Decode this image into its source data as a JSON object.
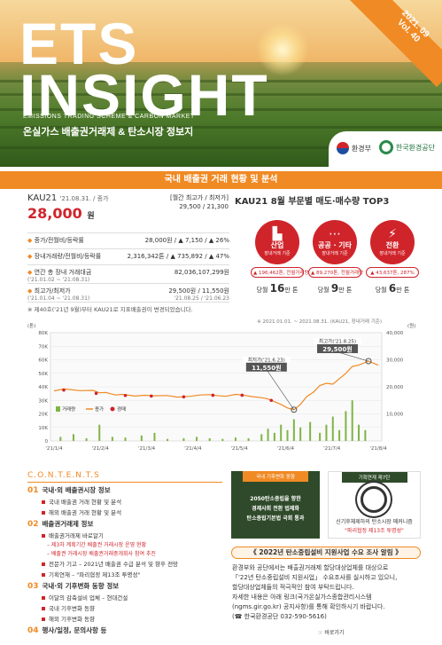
{
  "cover": {
    "title_line1": "ETS",
    "title_line2": "INSIGHT",
    "subtitle_en": "EMISSIONS TRADING SCHEME & CARBON MARKET",
    "subtitle_kr": "온실가스 배출권거래제 & 탄소시장 정보지",
    "issue_date": "2021. 09",
    "issue_vol": "Vol. 40",
    "logo_ministry": "환경부",
    "logo_keco": "한국환경공단"
  },
  "section_title": "국내 배출권 거래 현황 및 분석",
  "kau": {
    "name": "KAU21",
    "date_note": "'21.08.31. / 종가",
    "price": "28,000",
    "price_unit": "원",
    "hilo_label": "[월간 최고가 / 최저가]",
    "hilo_value": "29,500 / 21,300",
    "rows": [
      {
        "label": "종가/전월비/등락률",
        "sub": "",
        "value": "28,000원 / ▲ 7,150 / ▲ 26%",
        "value_sub": ""
      },
      {
        "label": "장내거래량/전월비/등락률",
        "sub": "",
        "value": "2,316,342톤 / ▲ 735,892 / ▲ 47%",
        "value_sub": ""
      },
      {
        "label": "연간 총 장내 거래대금",
        "sub": "('21.01.02 ~ '21.08.31)",
        "value": "82,036,107,299원",
        "value_sub": ""
      },
      {
        "label": "최고가/최저가",
        "sub": "('21.01.04 ~ '21.08.31)",
        "value": "29,500원 / 11,550원",
        "value_sub": "'21.08.25 / '21.06.23"
      }
    ],
    "note": "※ 제40호('21년 9월)부터 KAU21로 지표배출권이 변경되었습니다."
  },
  "top3": {
    "title": "KAU21 8월 부문별 매도·매수량 TOP3",
    "items": [
      {
        "name": "산업",
        "desc": "장내거래 기준",
        "delta": "▲ 196,462톤, 전월거래량",
        "vol_label": "당월",
        "vol": "16",
        "vol_unit": "만 톤",
        "icon": "factory-icon"
      },
      {
        "name": "공공 · 기타",
        "desc": "장내거래 기준",
        "delta": "▲ 89,270톤, 전월거래량",
        "vol_label": "당월",
        "vol": "9",
        "vol_unit": "만 톤",
        "icon": "dots-icon"
      },
      {
        "name": "전환",
        "desc": "장내거래 기준",
        "delta": "▲ 43,637톤, 287%",
        "vol_label": "당월",
        "vol": "6",
        "vol_unit": "만 톤",
        "icon": "bolt-icon"
      }
    ]
  },
  "chart_data": {
    "type": "line",
    "period_note": "※ 2021.01.01. ~ 2021.08.31. (KAU21, 장내거래 기준)",
    "left_unit": "(톤)",
    "right_unit": "(원)",
    "x_ticks": [
      "'21/1/4",
      "'21/2/4",
      "'21/3/4",
      "'21/4/4",
      "'21/5/4",
      "'21/6/4",
      "'21/7/4",
      "'21/8/4"
    ],
    "left_ticks": [
      "80K",
      "70K",
      "60K",
      "50K",
      "40K",
      "30K",
      "20K",
      "10K",
      "0"
    ],
    "right_ticks": [
      "40,000",
      "30,000",
      "20,000",
      "10,000"
    ],
    "ylim_volume": [
      0,
      80000
    ],
    "ylim_price": [
      0,
      40000
    ],
    "legend": [
      "거래량",
      "종가",
      "경매"
    ],
    "colors": {
      "volume": "#7fb446",
      "close": "#f08a24",
      "auction": "#d0242b"
    },
    "annotations": [
      {
        "label": "최저가('21.6.23)",
        "value": "11,550원",
        "date": 0.74,
        "price": 11550
      },
      {
        "label": "최고가('21.8.25)",
        "value": "29,500원",
        "date": 0.97,
        "price": 29500
      }
    ],
    "close_series": [
      [
        0.0,
        18500
      ],
      [
        0.03,
        19200
      ],
      [
        0.05,
        19000
      ],
      [
        0.08,
        18600
      ],
      [
        0.12,
        18700
      ],
      [
        0.14,
        17800
      ],
      [
        0.16,
        17900
      ],
      [
        0.19,
        17000
      ],
      [
        0.21,
        17200
      ],
      [
        0.25,
        16600
      ],
      [
        0.28,
        16900
      ],
      [
        0.31,
        16700
      ],
      [
        0.35,
        16800
      ],
      [
        0.38,
        16200
      ],
      [
        0.42,
        16500
      ],
      [
        0.45,
        17000
      ],
      [
        0.48,
        17100
      ],
      [
        0.5,
        16800
      ],
      [
        0.53,
        16500
      ],
      [
        0.56,
        17200
      ],
      [
        0.58,
        17000
      ],
      [
        0.61,
        16400
      ],
      [
        0.64,
        16000
      ],
      [
        0.66,
        15500
      ],
      [
        0.68,
        14500
      ],
      [
        0.7,
        13500
      ],
      [
        0.72,
        12200
      ],
      [
        0.74,
        11550
      ],
      [
        0.76,
        13500
      ],
      [
        0.78,
        16500
      ],
      [
        0.8,
        18000
      ],
      [
        0.82,
        20500
      ],
      [
        0.84,
        21300
      ],
      [
        0.86,
        21000
      ],
      [
        0.88,
        23000
      ],
      [
        0.9,
        25000
      ],
      [
        0.92,
        27500
      ],
      [
        0.94,
        28000
      ],
      [
        0.96,
        29000
      ],
      [
        0.97,
        29500
      ],
      [
        1.0,
        28000
      ]
    ],
    "auction_points": [
      [
        0.03,
        18800
      ],
      [
        0.13,
        17600
      ],
      [
        0.22,
        16800
      ],
      [
        0.3,
        16600
      ],
      [
        0.4,
        16300
      ],
      [
        0.49,
        16900
      ],
      [
        0.58,
        16900
      ],
      [
        0.67,
        15000
      ]
    ],
    "volume_series": [
      [
        0.02,
        3000
      ],
      [
        0.06,
        5000
      ],
      [
        0.1,
        2000
      ],
      [
        0.14,
        12000
      ],
      [
        0.18,
        3000
      ],
      [
        0.22,
        2500
      ],
      [
        0.27,
        4000
      ],
      [
        0.31,
        6000
      ],
      [
        0.35,
        1500
      ],
      [
        0.4,
        2000
      ],
      [
        0.44,
        3000
      ],
      [
        0.48,
        2000
      ],
      [
        0.52,
        1500
      ],
      [
        0.56,
        2500
      ],
      [
        0.6,
        2000
      ],
      [
        0.64,
        5000
      ],
      [
        0.66,
        9000
      ],
      [
        0.68,
        6000
      ],
      [
        0.7,
        12000
      ],
      [
        0.72,
        8000
      ],
      [
        0.74,
        16000
      ],
      [
        0.76,
        10000
      ],
      [
        0.79,
        14000
      ],
      [
        0.82,
        6000
      ],
      [
        0.84,
        12000
      ],
      [
        0.86,
        18000
      ],
      [
        0.88,
        8000
      ],
      [
        0.9,
        22000
      ],
      [
        0.92,
        30000
      ],
      [
        0.94,
        12000
      ],
      [
        0.96,
        8000
      ]
    ]
  },
  "contents": {
    "heading": "C.O.N.T.E.N.T.S",
    "sections": [
      {
        "num": "01",
        "title": "국내·외 배출권시장 정보",
        "items": [
          {
            "text": "국내 배출권 거래 현황 및 분석",
            "red": false
          },
          {
            "text": "해외 배출권 거래 현황 및 분석",
            "red": false
          }
        ]
      },
      {
        "num": "02",
        "title": "배출권거래제 정보",
        "items": [
          {
            "text": "배출권거래제 바로알기",
            "red": false
          },
          {
            "text": "– 제3차 계획기간 배출권 거래시장 운영 현황",
            "red": true,
            "subsub": true
          },
          {
            "text": "– 배출권 거래시장 배출권거래중개회사 참여 추진",
            "red": true,
            "subsub": true
          },
          {
            "text": "전문가 기고 – 2021년 배출권 수급 분석 및 향후 전망",
            "red": false
          },
          {
            "text": "기획연재 – \"파리협정 제13조 투명성\"",
            "red": false
          }
        ]
      },
      {
        "num": "03",
        "title": "국내·외 기후변화 동향 정보",
        "items": [
          {
            "text": "이달의 감축설비 업체 – 현대건설",
            "red": false
          },
          {
            "text": "국내 기후변화 동향",
            "red": false
          },
          {
            "text": "해외 기후변화 동향",
            "red": false
          }
        ]
      },
      {
        "num": "04",
        "title": "행사/일정, 문의사항 등",
        "items": []
      }
    ]
  },
  "box_a": {
    "tag": "국내 기후변화 동향",
    "lines": [
      "2050탄소중립을 향한",
      "경제사회 전환 법제화",
      "탄소중립기본법 국회 통과"
    ]
  },
  "box_b": {
    "tag": "기획연재 제7탄",
    "lines": [
      "신기후체제하의 탄소시장 메커니즘",
      "\"파리협정 제13조 투명성\""
    ]
  },
  "survey": {
    "title": "《 2022년 탄소중립설비 지원사업 수요 조사 알림 》",
    "lines": [
      "환경부와 공단에서는 배출권거래제 할당대상업체를 대상으로",
      "「'22년 탄소중립설비 지원사업」 수요조사를 실시하고 있으니,",
      "할당대상업체들의 적극적인 참여 부탁드립니다.",
      "자세한 내용은 아래 링크(국가온실가스종합관리시스템",
      "(ngms.gir.go.kr) 공지사항)를 통해 확인하시기 바랍니다.",
      "(☎ 한국환경공단 032-590-5616)"
    ],
    "back": "바로가기"
  }
}
